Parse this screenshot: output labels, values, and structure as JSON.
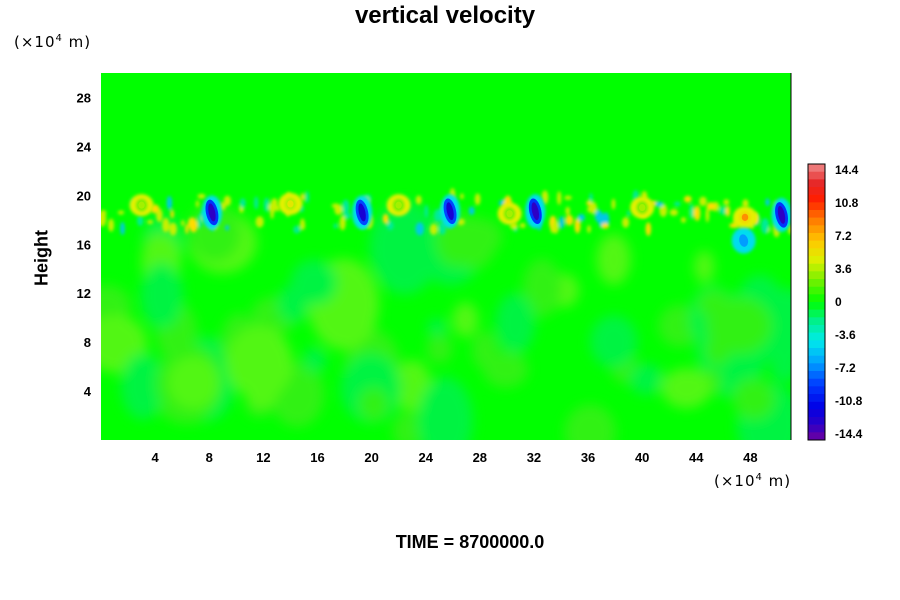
{
  "chart_data": {
    "type": "heatmap",
    "title": "vertical velocity",
    "ylabel": "Height",
    "xlabel": "",
    "y_unit_prefix": "(×10",
    "x_unit_prefix": "(×10",
    "unit_exponent": "4",
    "unit_suffix": " m)",
    "x_ticks": [
      "4",
      "8",
      "12",
      "16",
      "20",
      "24",
      "28",
      "32",
      "36",
      "40",
      "44",
      "48"
    ],
    "y_ticks": [
      "4",
      "8",
      "12",
      "16",
      "20",
      "24",
      "28"
    ],
    "xlim": [
      0,
      51
    ],
    "ylim": [
      0,
      30
    ],
    "colorbar": {
      "labels": [
        "14.4",
        "10.8",
        "7.2",
        "3.6",
        "0",
        "-3.6",
        "-7.2",
        "-10.8",
        "-14.4"
      ],
      "range": [
        -16.2,
        16.2
      ],
      "levels": 36
    },
    "background_value": 0,
    "features": [
      {
        "x": 8.2,
        "y": 18.6,
        "value": -14.4
      },
      {
        "x": 19.3,
        "y": 18.6,
        "value": -13.5
      },
      {
        "x": 25.8,
        "y": 18.7,
        "value": -13.5
      },
      {
        "x": 32.1,
        "y": 18.7,
        "value": -14.4
      },
      {
        "x": 50.3,
        "y": 18.4,
        "value": -14.4
      },
      {
        "x": 47.6,
        "y": 18.2,
        "value": 9.0
      },
      {
        "x": 47.5,
        "y": 16.3,
        "value": -7.2
      },
      {
        "x": 14.0,
        "y": 19.3,
        "value": 5.4
      },
      {
        "x": 3.0,
        "y": 19.2,
        "value": 3.6
      },
      {
        "x": 22.0,
        "y": 19.2,
        "value": 3.6
      },
      {
        "x": 30.2,
        "y": 18.5,
        "value": 3.6
      },
      {
        "x": 40.0,
        "y": 19.0,
        "value": 3.6
      }
    ],
    "grid": false
  },
  "footer": {
    "label": "TIME = 8700000.0"
  }
}
